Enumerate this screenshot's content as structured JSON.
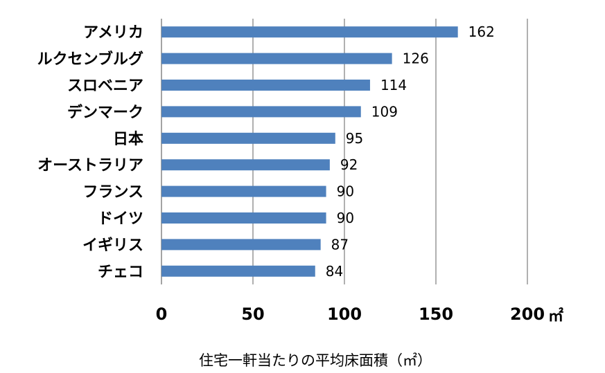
{
  "chart_data": {
    "type": "bar",
    "orientation": "horizontal",
    "title": "",
    "xlabel": "住宅一軒当たりの平均床面積（㎡）",
    "ylabel": "",
    "x_unit": "㎡",
    "categories": [
      "アメリカ",
      "ルクセンブルグ",
      "スロベニア",
      "デンマーク",
      "日本",
      "オーストラリア",
      "フランス",
      "ドイツ",
      "イギリス",
      "チェコ"
    ],
    "values": [
      162,
      126,
      114,
      109,
      95,
      92,
      90,
      90,
      87,
      84
    ],
    "xlim": [
      0,
      200
    ],
    "xticks": [
      0,
      50,
      100,
      150,
      200
    ],
    "xtick_labels": [
      "0",
      "50",
      "100",
      "150",
      "200"
    ],
    "grid": "vertical",
    "legend": "none",
    "bar_color": "#4f81bd"
  }
}
